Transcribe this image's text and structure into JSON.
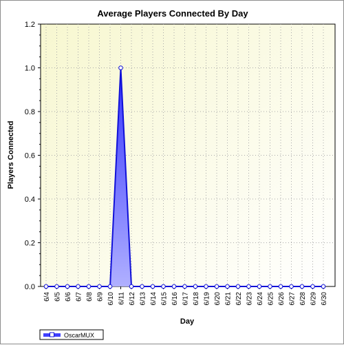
{
  "chart_data": {
    "type": "area",
    "title": "Average Players Connected By Day",
    "xlabel": "Day",
    "ylabel": "Players Connected",
    "categories": [
      "6/4",
      "6/5",
      "6/6",
      "6/7",
      "6/8",
      "6/9",
      "6/10",
      "6/11",
      "6/12",
      "6/13",
      "6/14",
      "6/15",
      "6/16",
      "6/17",
      "6/18",
      "6/19",
      "6/20",
      "6/21",
      "6/22",
      "6/23",
      "6/24",
      "6/25",
      "6/26",
      "6/27",
      "6/28",
      "6/29",
      "6/30"
    ],
    "series": [
      {
        "name": "OscarMUX",
        "values": [
          0,
          0,
          0,
          0,
          0,
          0,
          0,
          1.0,
          0,
          0,
          0,
          0,
          0,
          0,
          0,
          0,
          0,
          0,
          0,
          0,
          0,
          0,
          0,
          0,
          0,
          0,
          0
        ]
      }
    ],
    "ylim": [
      0,
      1.2
    ],
    "yticks": [
      "0.0",
      "0.2",
      "0.4",
      "0.6",
      "0.8",
      "1.0",
      "1.2"
    ],
    "grid": true,
    "legend_position": "bottom-left",
    "colors": {
      "plot_bg_top": "#f7f7d4",
      "plot_bg_bottom": "#ffffff",
      "line": "#1010d8",
      "fill_top": "#3a3aff",
      "fill_bottom": "#b8b8ff",
      "marker_fill": "#ffffff"
    }
  }
}
